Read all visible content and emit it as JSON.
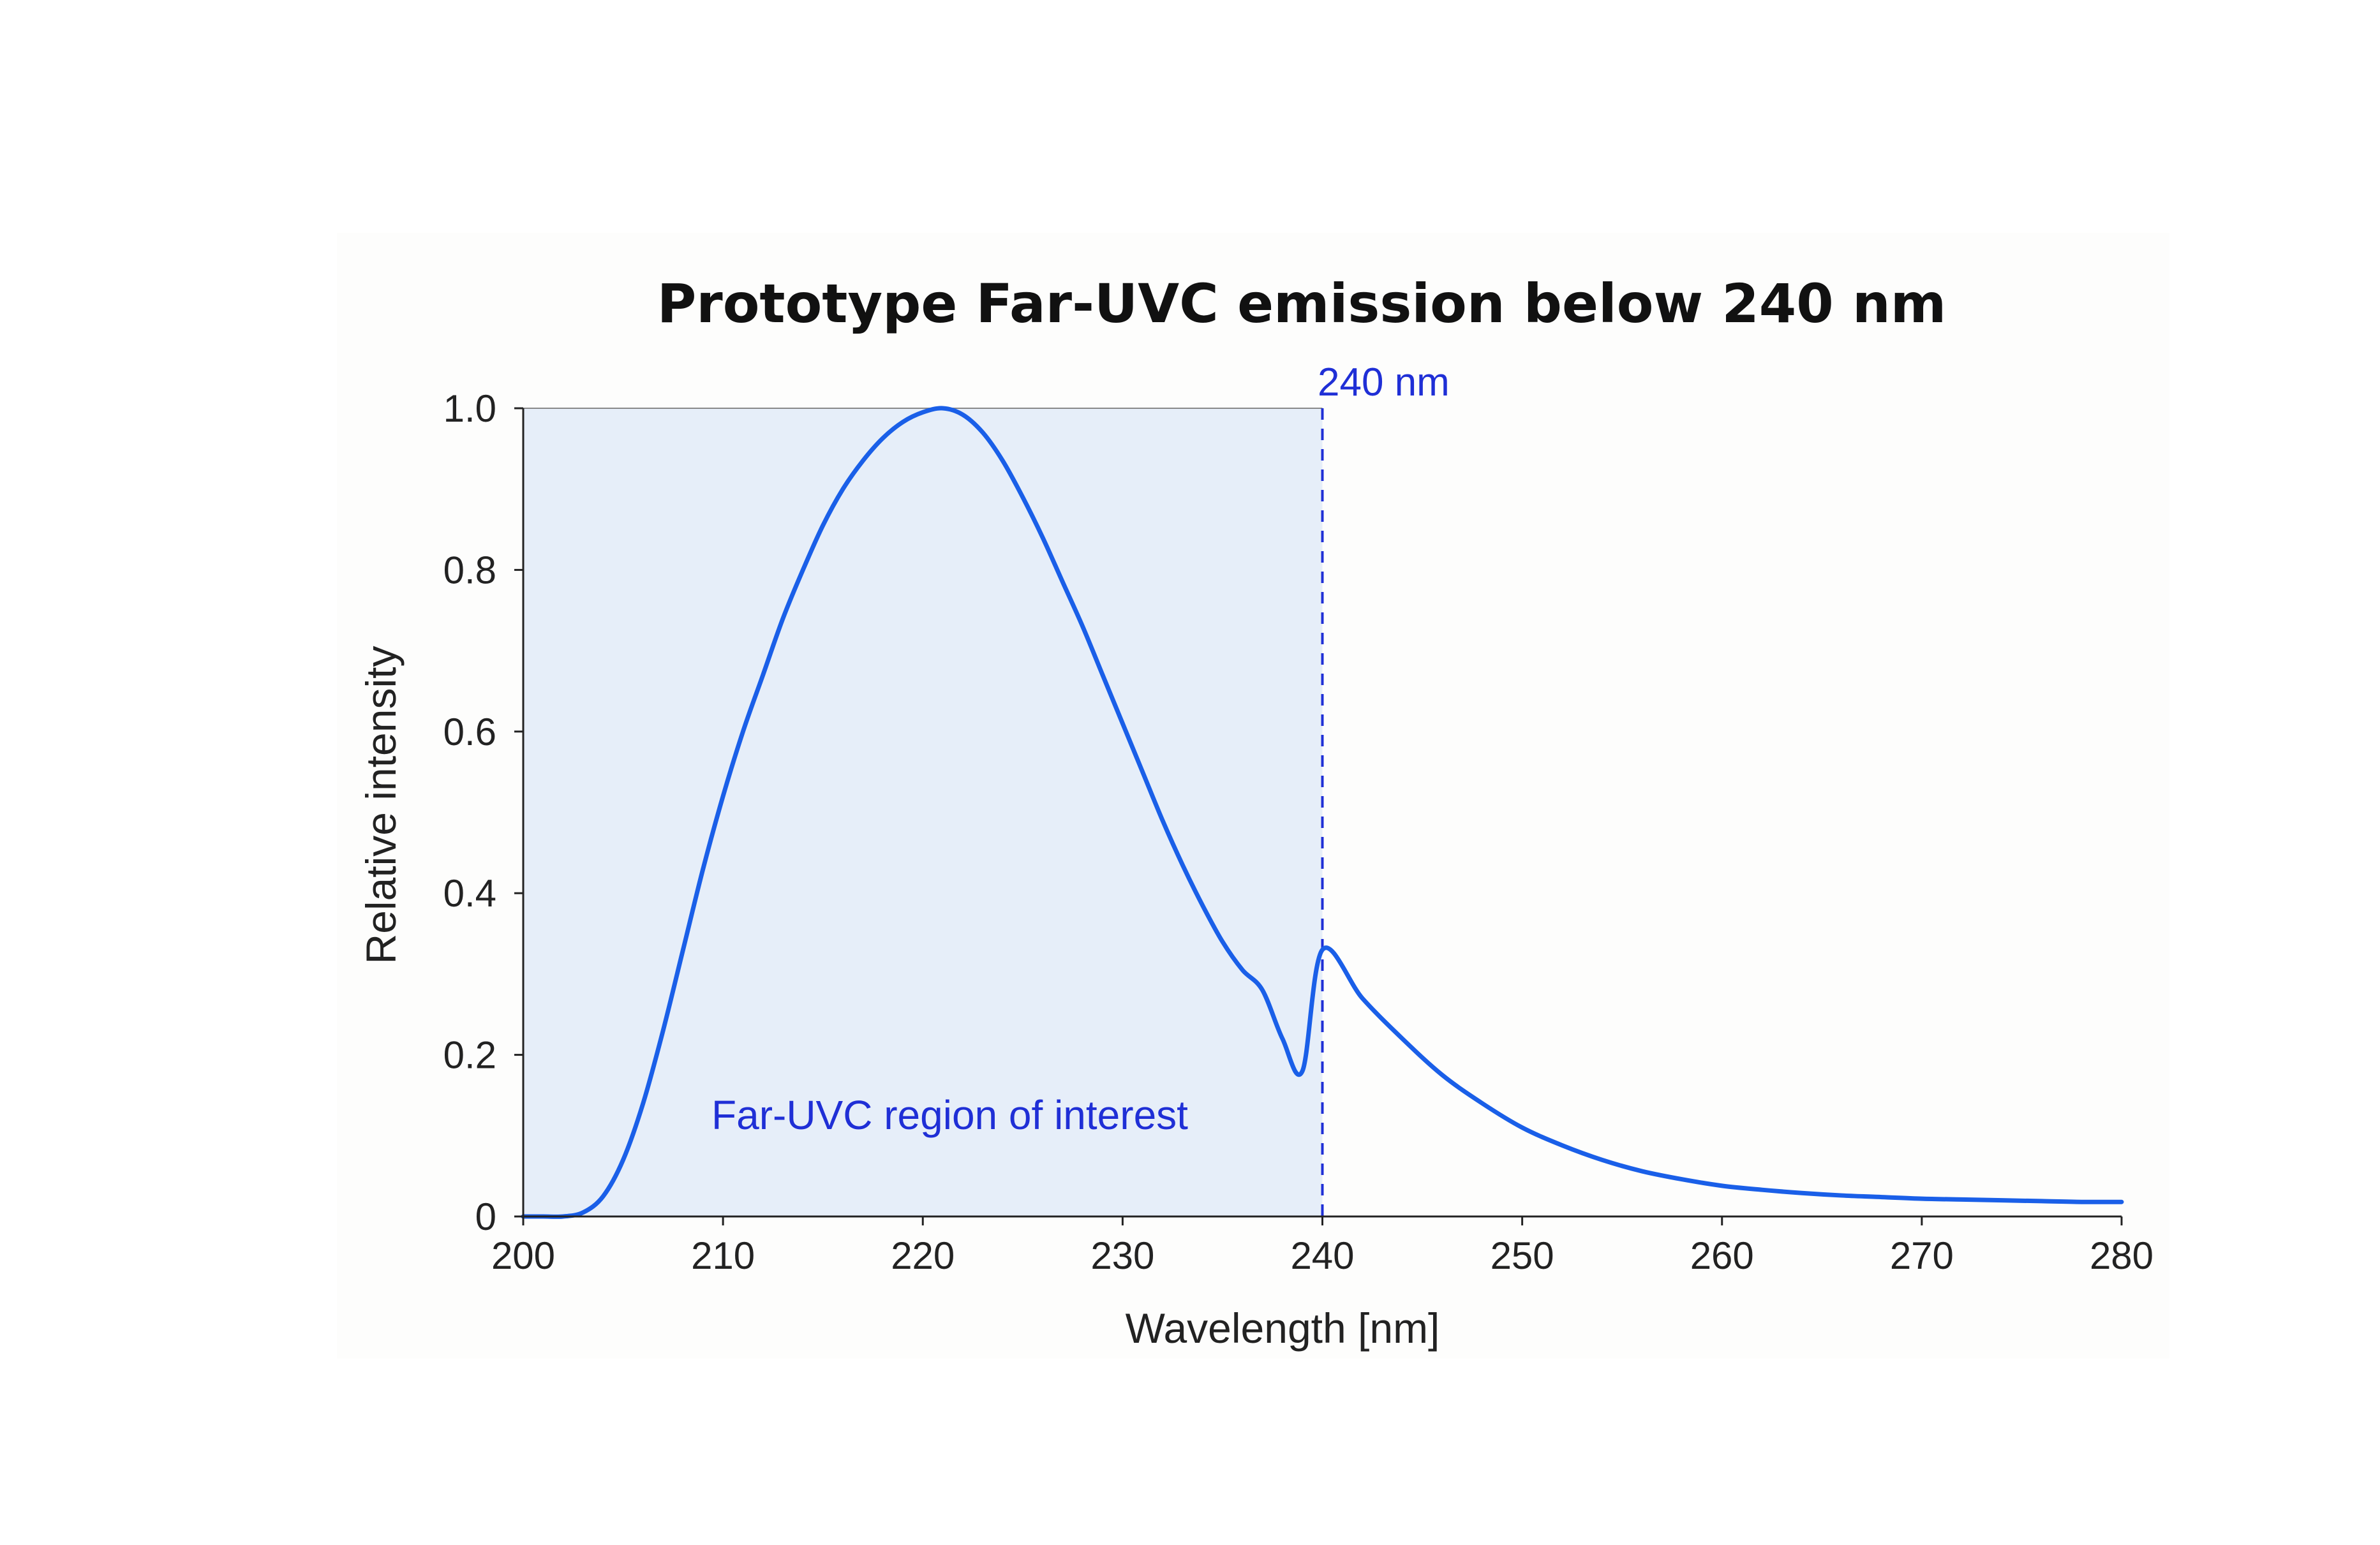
{
  "chart_data": {
    "type": "line",
    "title": "Prototype Far-UVC emission below 240 nm",
    "xlabel": "Wavelength [nm]",
    "ylabel": "Relative intensity",
    "xlim": [
      200,
      280
    ],
    "ylim": [
      0,
      1.0
    ],
    "x_ticks": [
      "200",
      "210",
      "220",
      "230",
      "240",
      "250",
      "260",
      "270",
      "280"
    ],
    "y_ticks": [
      "0",
      "0.2",
      "0.4",
      "0.6",
      "0.8",
      "1.0"
    ],
    "grid": false,
    "legend": "none",
    "series": [
      {
        "x": [
          200,
          201,
          202,
          203,
          204,
          205,
          206,
          207,
          208,
          209,
          210,
          211,
          212,
          213,
          214,
          215,
          216,
          217,
          218,
          219,
          220,
          221,
          222,
          223,
          224,
          225,
          226,
          227,
          228,
          229,
          230,
          231,
          232,
          233,
          234,
          235,
          236,
          237,
          238,
          239,
          240,
          242,
          244,
          246,
          248,
          250,
          252,
          254,
          256,
          258,
          260,
          262,
          264,
          266,
          268,
          270,
          272,
          274,
          276,
          278,
          280
        ],
        "values": [
          0.0,
          0.0,
          0.0,
          0.005,
          0.025,
          0.07,
          0.14,
          0.23,
          0.33,
          0.43,
          0.52,
          0.6,
          0.67,
          0.74,
          0.8,
          0.855,
          0.9,
          0.935,
          0.963,
          0.983,
          0.995,
          1.0,
          0.992,
          0.97,
          0.935,
          0.89,
          0.84,
          0.785,
          0.73,
          0.67,
          0.61,
          0.55,
          0.49,
          0.435,
          0.385,
          0.34,
          0.305,
          0.28,
          0.22,
          0.18,
          0.33,
          0.27,
          0.22,
          0.175,
          0.14,
          0.11,
          0.088,
          0.07,
          0.056,
          0.046,
          0.038,
          0.033,
          0.029,
          0.026,
          0.024,
          0.022,
          0.021,
          0.02,
          0.019,
          0.018,
          0.018
        ]
      }
    ],
    "annotations": {
      "threshold_line": {
        "x": 240,
        "label": "240 nm",
        "style": "dashed"
      },
      "shaded_region": {
        "x_range": [
          200,
          240
        ],
        "label": "Far-UVC region of interest"
      }
    },
    "colors": {
      "curve": "#1a5fe8",
      "annotation_text": "#1f2fd6",
      "region_fill": "#e6eef9",
      "axis": "#222222"
    }
  }
}
